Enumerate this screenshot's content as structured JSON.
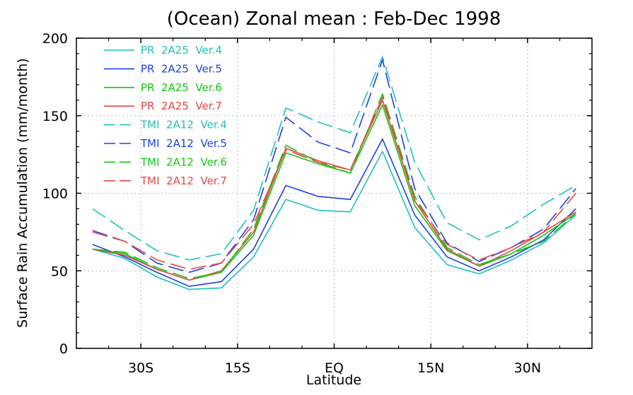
{
  "chart_data": {
    "type": "line",
    "title": "(Ocean) Zonal mean : Feb-Dec 1998",
    "xlabel": "Latitude",
    "ylabel": "Surface Rain Accumulation (mm/month)",
    "xlim": [
      -40,
      40
    ],
    "ylim": [
      0,
      200
    ],
    "x_ticks": [
      -30,
      -15,
      0,
      15,
      30
    ],
    "x_tick_labels": [
      "30S",
      "15S",
      "EQ",
      "15N",
      "30N"
    ],
    "y_ticks": [
      0,
      50,
      100,
      150,
      200
    ],
    "y_tick_labels": [
      "0",
      "50",
      "100",
      "150",
      "200"
    ],
    "grid": true,
    "legend_position": "top-left",
    "x": [
      -37.5,
      -32.5,
      -27.5,
      -22.5,
      -17.5,
      -12.5,
      -7.5,
      -2.5,
      2.5,
      7.5,
      12.5,
      17.5,
      22.5,
      27.5,
      32.5,
      37.5
    ],
    "series": [
      {
        "name": "PR  2A25  Ver.4",
        "color": "#1fc0c0",
        "dash": "solid",
        "values": [
          64,
          58,
          46,
          38,
          39,
          59,
          96,
          89,
          88,
          127,
          78,
          54,
          48,
          57,
          68,
          86
        ]
      },
      {
        "name": "PR  2A25  Ver.5",
        "color": "#1f3fe0",
        "dash": "solid",
        "values": [
          67,
          59,
          49,
          40,
          43,
          64,
          105,
          98,
          96,
          135,
          86,
          59,
          50,
          59,
          70,
          90
        ]
      },
      {
        "name": "PR  2A25  Ver.6",
        "color": "#11c811",
        "dash": "solid",
        "values": [
          64,
          61,
          51,
          44,
          49,
          73,
          126,
          119,
          113,
          157,
          92,
          63,
          53,
          61,
          73,
          87
        ]
      },
      {
        "name": "PR  2A25  Ver.7",
        "color": "#e84646",
        "dash": "solid",
        "values": [
          64,
          60,
          51,
          44,
          50,
          75,
          129,
          121,
          115,
          160,
          95,
          64,
          53,
          63,
          75,
          88
        ]
      },
      {
        "name": "TMI  2A12  Ver.4",
        "color": "#1fc0c0",
        "dash": "dashed",
        "values": [
          90,
          76,
          63,
          57,
          61,
          89,
          155,
          146,
          139,
          188,
          120,
          81,
          70,
          79,
          93,
          105
        ]
      },
      {
        "name": "TMI  2A12  Ver.5",
        "color": "#1f3fe0",
        "dash": "dashed",
        "values": [
          76,
          69,
          55,
          49,
          55,
          83,
          149,
          133,
          126,
          186,
          103,
          68,
          56,
          65,
          77,
          103
        ]
      },
      {
        "name": "TMI  2A12  Ver.6",
        "color": "#11c811",
        "dash": "dashed",
        "values": [
          64,
          62,
          52,
          45,
          49,
          77,
          131,
          120,
          113,
          164,
          98,
          65,
          54,
          61,
          69,
          87
        ]
      },
      {
        "name": "TMI  2A12  Ver.7",
        "color": "#e84646",
        "dash": "dashed",
        "values": [
          75,
          69,
          57,
          51,
          55,
          80,
          128,
          120,
          115,
          162,
          96,
          67,
          57,
          65,
          75,
          100
        ]
      }
    ]
  }
}
